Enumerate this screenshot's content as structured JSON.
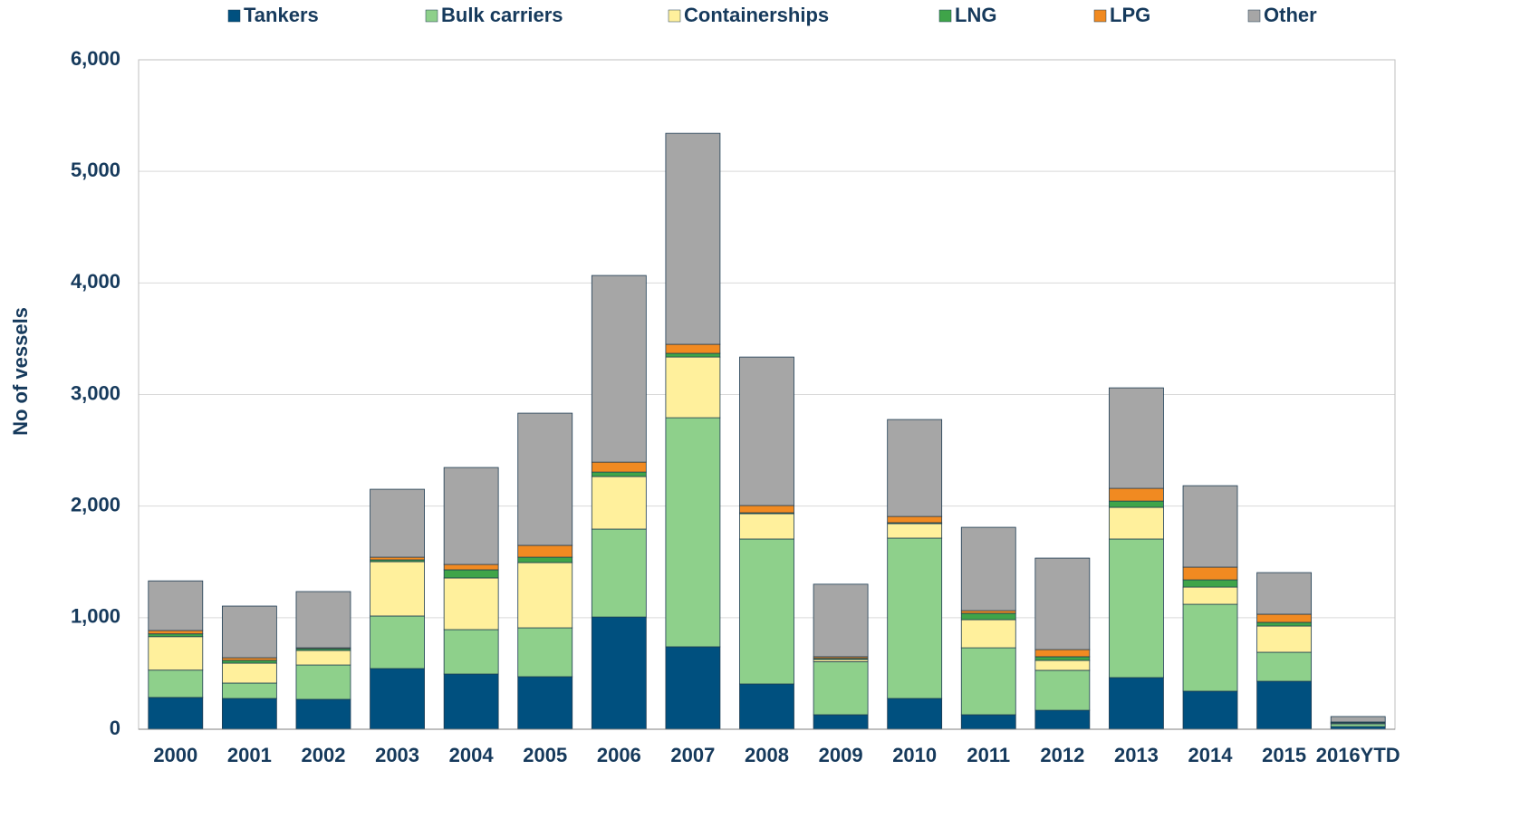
{
  "chart_data": {
    "type": "stacked_bar",
    "y_label": "No of vessels",
    "categories": [
      "2000",
      "2001",
      "2002",
      "2003",
      "2004",
      "2005",
      "2006",
      "2007",
      "2008",
      "2009",
      "2010",
      "2011",
      "2012",
      "2013",
      "2014",
      "2015",
      "2016YTD"
    ],
    "series": [
      {
        "name": "Tankers",
        "color": "#00507f",
        "values": [
          285,
          276,
          268,
          544,
          495,
          471,
          1006,
          739,
          406,
          130,
          276,
          130,
          170,
          463,
          341,
          430,
          24
        ]
      },
      {
        "name": "Bulk carriers",
        "color": "#8ed08b",
        "values": [
          245,
          138,
          308,
          471,
          398,
          438,
          788,
          2053,
          1299,
          475,
          1437,
          600,
          358,
          1242,
          779,
          260,
          25
        ]
      },
      {
        "name": "Containerships",
        "color": "#fff09c",
        "values": [
          300,
          178,
          130,
          487,
          463,
          585,
          471,
          544,
          227,
          20,
          130,
          252,
          89,
          284,
          154,
          235,
          8
        ]
      },
      {
        "name": "LNG",
        "color": "#3fa449",
        "values": [
          25,
          25,
          16,
          16,
          73,
          48,
          40,
          33,
          8,
          10,
          8,
          57,
          33,
          56,
          65,
          33,
          8
        ]
      },
      {
        "name": "LPG",
        "color": "#f18a21",
        "values": [
          30,
          24,
          8,
          24,
          48,
          106,
          89,
          81,
          65,
          15,
          56,
          24,
          64,
          114,
          114,
          73,
          0
        ]
      },
      {
        "name": "Other",
        "color": "#a6a6a6",
        "values": [
          445,
          463,
          504,
          609,
          869,
          1185,
          1673,
          1891,
          1331,
          650,
          869,
          747,
          820,
          901,
          730,
          373,
          49
        ]
      }
    ],
    "ylim": [
      0,
      6000
    ],
    "yticks": [
      0,
      {
        "value": 1000,
        "label": "1,000"
      },
      {
        "value": 2000,
        "label": "2,000"
      },
      {
        "value": 3000,
        "label": "3,000"
      },
      {
        "value": 4000,
        "label": "4,000"
      },
      {
        "value": 5000,
        "label": "5,000"
      },
      {
        "value": 6000,
        "label": "6,000"
      }
    ],
    "grid": true,
    "legend": "top"
  }
}
